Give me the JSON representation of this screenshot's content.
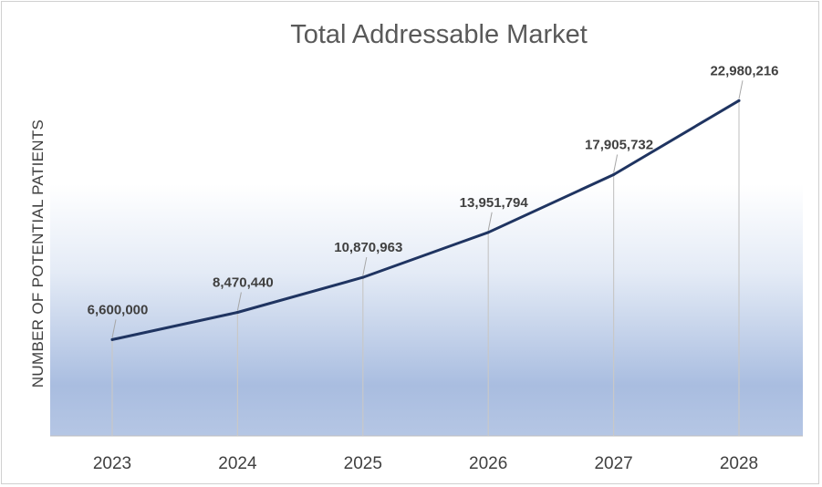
{
  "chart_data": {
    "type": "line",
    "title": "Total Addressable Market",
    "xlabel": "",
    "ylabel": "NUMBER OF POTENTIAL PATIENTS",
    "categories": [
      "2023",
      "2024",
      "2025",
      "2026",
      "2027",
      "2028"
    ],
    "series": [
      {
        "values": [
          6600000,
          8470440,
          10870963,
          13951794,
          17905732,
          22980216
        ],
        "labels": [
          "6,600,000",
          "8,470,440",
          "10,870,963",
          "13,951,794",
          "17,905,732",
          "22,980,216"
        ]
      }
    ],
    "ylim": [
      0,
      26000000
    ],
    "grid": false,
    "legend": "none",
    "colors": {
      "line": "#1f3461",
      "gradient_top": "#ffffff",
      "gradient_bottom": "#a7bcdf",
      "drop_line": "#c8c8c8",
      "text": "#404040",
      "title": "#595959"
    }
  }
}
